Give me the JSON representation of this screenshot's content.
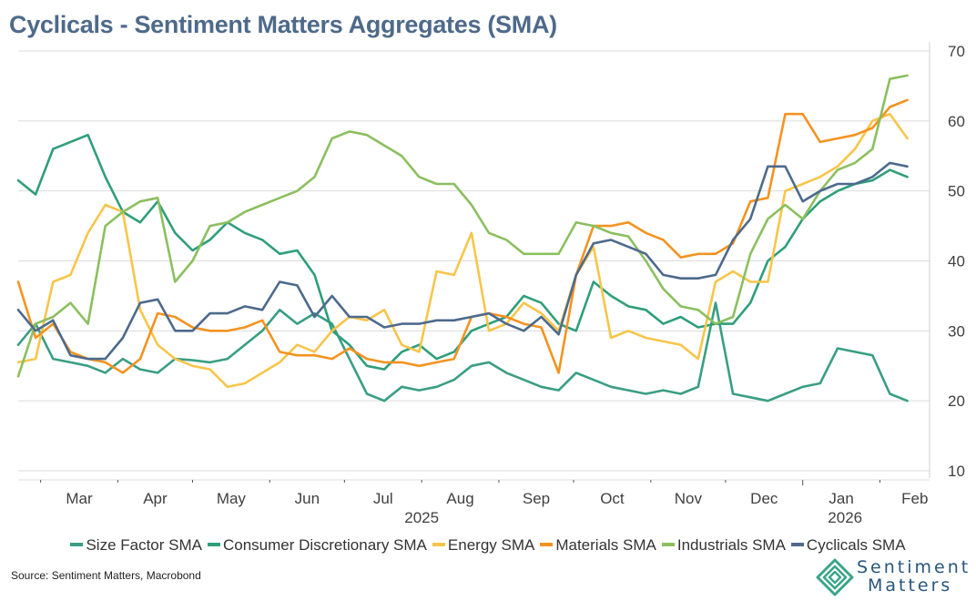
{
  "title": "Cyclicals - Sentiment Matters Aggregates (SMA)",
  "source": "Source: Sentiment Matters, Macrobond",
  "logo": {
    "line1": "Sentiment",
    "line2": "Matters",
    "icon": "nested-diamond-icon"
  },
  "chart_data": {
    "type": "line",
    "title": "Cyclicals - Sentiment Matters Aggregates (SMA)",
    "xlabel": "",
    "ylabel": "",
    "ylim": [
      10,
      70
    ],
    "yticks": [
      10,
      20,
      30,
      40,
      50,
      60,
      70
    ],
    "y_axis_side": "right",
    "grid": true,
    "legend_position": "bottom",
    "x_start": "2025-02-20",
    "x_end": "2026-02-18",
    "x_step_days": 7,
    "month_ticks": [
      {
        "label": "Mar",
        "date": "2025-03-01"
      },
      {
        "label": "Apr",
        "date": "2025-04-01"
      },
      {
        "label": "May",
        "date": "2025-05-01"
      },
      {
        "label": "Jun",
        "date": "2025-06-01"
      },
      {
        "label": "Jul",
        "date": "2025-07-01"
      },
      {
        "label": "Aug",
        "date": "2025-08-01"
      },
      {
        "label": "Sep",
        "date": "2025-09-01"
      },
      {
        "label": "Oct",
        "date": "2025-10-01"
      },
      {
        "label": "Nov",
        "date": "2025-11-01"
      },
      {
        "label": "Dec",
        "date": "2025-12-01"
      },
      {
        "label": "Jan",
        "date": "2026-01-01"
      },
      {
        "label": "Feb",
        "date": "2026-02-01"
      }
    ],
    "year_labels": [
      {
        "label": "2025",
        "date": "2025-08-01"
      },
      {
        "label": "2026",
        "date": "2026-01-18"
      }
    ],
    "series": [
      {
        "name": "Size Factor SMA",
        "color": "#3a9e84",
        "values": [
          28,
          31,
          26,
          25.5,
          25,
          24,
          26,
          24.5,
          24,
          26,
          25.8,
          25.5,
          26,
          28,
          30,
          33,
          31,
          32.5,
          31,
          26,
          21,
          20,
          22,
          21.5,
          22,
          23,
          25,
          25.5,
          24,
          23,
          22,
          21.5,
          24,
          23,
          22,
          21.5,
          21,
          21.5,
          21,
          22,
          34,
          21,
          20.5,
          20,
          21,
          22,
          22.5,
          27.5,
          27,
          26.5,
          21,
          20
        ]
      },
      {
        "name": "Consumer Discretionary SMA",
        "color": "#2f9e7a",
        "values": [
          51.5,
          49.5,
          56,
          57,
          58,
          52,
          47,
          45.5,
          48.5,
          44,
          41.5,
          43,
          45.5,
          44,
          43,
          41,
          41.5,
          38,
          30,
          28,
          25,
          24.5,
          27,
          28,
          26,
          27,
          30,
          31,
          32,
          35,
          34,
          31,
          30,
          37,
          35,
          33.5,
          33,
          31,
          32,
          30.5,
          31,
          31,
          34,
          40,
          42,
          46,
          48.5,
          50,
          51,
          51.5,
          53,
          52
        ]
      },
      {
        "name": "Energy SMA",
        "color": "#f7c54a",
        "values": [
          25.5,
          26,
          37,
          38,
          44,
          48,
          47,
          33,
          28,
          26,
          25,
          24.5,
          22,
          22.5,
          24,
          25.5,
          28,
          27,
          30,
          32,
          31.5,
          33,
          28,
          27,
          38.5,
          38,
          44,
          30,
          31,
          34,
          32.5,
          30,
          38,
          42,
          29,
          30,
          29,
          28.5,
          28,
          26,
          37,
          38.5,
          37,
          37,
          50,
          51,
          52,
          53.5,
          56,
          60,
          61,
          57.5
        ]
      },
      {
        "name": "Materials SMA",
        "color": "#f39321",
        "values": [
          37,
          29,
          31,
          27,
          26,
          25.5,
          24,
          26,
          32.5,
          32,
          30.5,
          30,
          30,
          30.5,
          31.5,
          27,
          26.5,
          26.5,
          26,
          27.5,
          26,
          25.5,
          25.5,
          25,
          25.5,
          26,
          32,
          32.5,
          32,
          31,
          30.5,
          24,
          38,
          45,
          45,
          45.5,
          44,
          43,
          40.5,
          41,
          41,
          42.5,
          48.5,
          49,
          61,
          61,
          57,
          57.5,
          58,
          59,
          62,
          63
        ]
      },
      {
        "name": "Industrials SMA",
        "color": "#8bbf5f",
        "values": [
          23.5,
          31,
          32,
          34,
          31,
          45,
          47,
          48.5,
          49,
          37,
          40,
          45,
          45.5,
          47,
          48,
          49,
          50,
          52,
          57.5,
          58.5,
          58,
          56.5,
          55,
          52,
          51,
          51,
          48,
          44,
          43,
          41,
          41,
          41,
          45.5,
          45,
          44,
          43.5,
          40,
          36,
          33.5,
          33,
          31,
          32,
          41,
          46,
          48,
          46,
          50,
          53,
          54,
          56,
          66,
          66.5
        ]
      },
      {
        "name": "Cyclicals SMA",
        "color": "#4d6a8c",
        "values": [
          33,
          30,
          31.5,
          26.5,
          26,
          26,
          29,
          34,
          34.5,
          30,
          30,
          32.5,
          32.5,
          33.5,
          33,
          37,
          36.5,
          32,
          35,
          32,
          32,
          30.5,
          31,
          31,
          31.5,
          31.5,
          32,
          32.5,
          31,
          30,
          32,
          29.5,
          38,
          42.5,
          43,
          42,
          41,
          38,
          37.5,
          37.5,
          38,
          43,
          46,
          53.5,
          53.5,
          48.5,
          50,
          51,
          51,
          52,
          54,
          53.5
        ]
      }
    ]
  }
}
